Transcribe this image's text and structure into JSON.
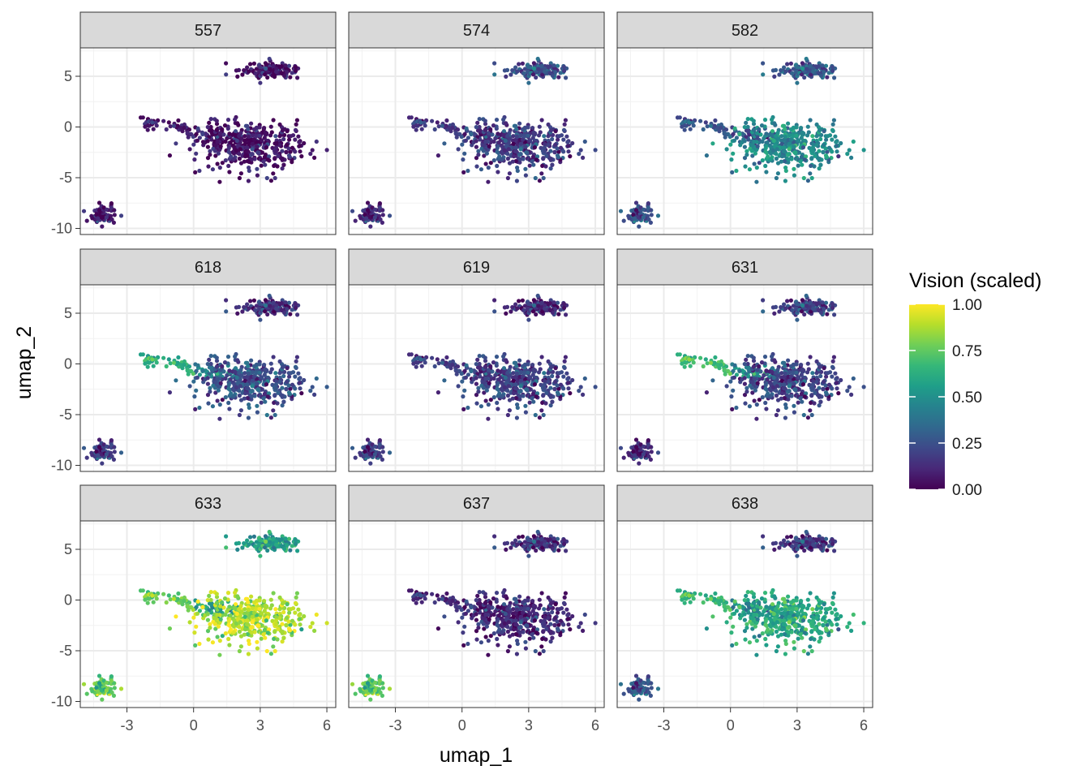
{
  "chart_data": {
    "type": "scatter",
    "layout": "facet_wrap 3x3",
    "xlabel": "umap_1",
    "ylabel": "umap_2",
    "xlim": [
      -5.1,
      6.4
    ],
    "ylim": [
      -10.6,
      7.8
    ],
    "x_ticks": [
      -3,
      0,
      3,
      6
    ],
    "x_tick_labels": [
      "-3",
      "0",
      "3",
      "6"
    ],
    "y_ticks": [
      5,
      0,
      -5,
      -10
    ],
    "y_tick_labels": [
      "5",
      "0",
      "-5",
      "-10"
    ],
    "grid": true,
    "legend": {
      "title": "Vision (scaled)",
      "position": "right",
      "ticks": [
        1.0,
        0.75,
        0.5,
        0.25,
        0.0
      ],
      "tick_labels": [
        "1.00",
        "0.75",
        "0.50",
        "0.25",
        "0.00"
      ],
      "range": [
        0,
        1
      ],
      "palette": [
        "#440154",
        "#482878",
        "#3e4989",
        "#31688e",
        "#26828e",
        "#1f9e89",
        "#35b779",
        "#6ece58",
        "#b5de2b",
        "#fde725"
      ]
    },
    "clusters": [
      {
        "name": "top",
        "cx": 3.5,
        "cy": 5.6,
        "sx": 0.75,
        "sy": 0.45,
        "n": 130,
        "weight": 0.7
      },
      {
        "name": "tail",
        "cx": 0.5,
        "cy": -0.6,
        "sx": 1.6,
        "sy": 0.8,
        "n": 110,
        "weight": 0.5,
        "angle": -0.28
      },
      {
        "name": "main",
        "cx": 2.7,
        "cy": -1.9,
        "sx": 1.2,
        "sy": 1.2,
        "n": 380,
        "weight": 1.0
      },
      {
        "name": "small",
        "cx": -4.1,
        "cy": -8.7,
        "sx": 0.35,
        "sy": 0.45,
        "n": 70,
        "weight": 0.5
      }
    ],
    "panels": [
      {
        "label": "557",
        "levels": {
          "top": 0.05,
          "tail": 0.05,
          "main": 0.05,
          "small": 0.08
        }
      },
      {
        "label": "574",
        "levels": {
          "top": 0.25,
          "tail": 0.14,
          "main": 0.18,
          "small": 0.13
        }
      },
      {
        "label": "582",
        "levels": {
          "top": 0.28,
          "tail": 0.24,
          "main": 0.47,
          "small": 0.26
        }
      },
      {
        "label": "618",
        "levels": {
          "top": 0.15,
          "tail": 0.52,
          "main": 0.24,
          "small": 0.19
        }
      },
      {
        "label": "619",
        "levels": {
          "top": 0.12,
          "tail": 0.16,
          "main": 0.2,
          "small": 0.2
        }
      },
      {
        "label": "631",
        "levels": {
          "top": 0.2,
          "tail": 0.58,
          "main": 0.2,
          "small": 0.13
        }
      },
      {
        "label": "633",
        "levels": {
          "top": 0.56,
          "tail": 0.66,
          "main": 0.88,
          "small": 0.76
        }
      },
      {
        "label": "637",
        "levels": {
          "top": 0.15,
          "tail": 0.1,
          "main": 0.12,
          "small": 0.75
        }
      },
      {
        "label": "638",
        "levels": {
          "top": 0.17,
          "tail": 0.56,
          "main": 0.6,
          "small": 0.28
        }
      }
    ]
  }
}
